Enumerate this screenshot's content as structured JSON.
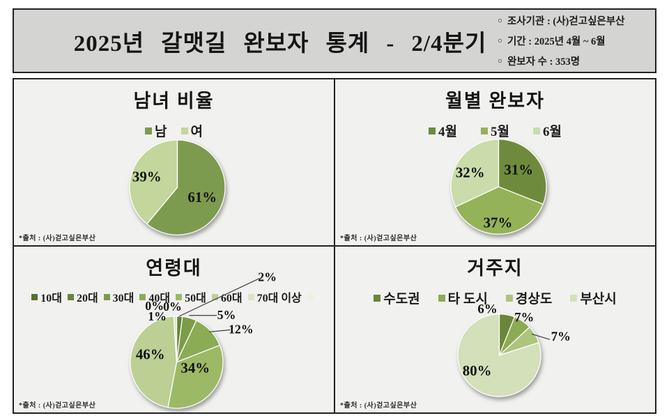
{
  "header": {
    "title": "2025년 갈맷길 완보자 통계 - 2/4분기",
    "info_items": [
      {
        "bullet": "○",
        "text": "조사기관 : (사)걷고싶은부산"
      },
      {
        "bullet": "○",
        "text": "기간 : 2025년 4월 ~ 6월"
      },
      {
        "bullet": "○",
        "text": "완보자 수 : 353명"
      }
    ]
  },
  "chart_data": [
    {
      "type": "pie",
      "title": "남녀 비율",
      "categories": [
        "남",
        "여"
      ],
      "values": [
        61,
        39
      ],
      "labels": [
        "61%",
        "39%"
      ],
      "colors": [
        "#7d9b4f",
        "#c3d69b"
      ],
      "legend_position": "top",
      "start_angle": "12-oclock-clockwise",
      "source_note": "*출처 : (사)걷고싶은부산"
    },
    {
      "type": "pie",
      "title": "월별 완보자",
      "categories": [
        "4월",
        "5월",
        "6월"
      ],
      "values": [
        31,
        37,
        32
      ],
      "labels": [
        "31%",
        "37%",
        "32%"
      ],
      "colors": [
        "#6e8b3d",
        "#94b257",
        "#cbdcab"
      ],
      "legend_position": "top",
      "start_angle": "12-oclock-clockwise",
      "source_note": "*출처 : (사)걷고싶은부산"
    },
    {
      "type": "pie",
      "title": "연령대",
      "categories": [
        "10대",
        "20대",
        "30대",
        "40대",
        "50대",
        "60대",
        "70대 이상",
        ""
      ],
      "values": [
        0,
        2,
        5,
        12,
        34,
        46,
        1,
        0
      ],
      "labels": [
        "0%",
        "2%",
        "5%",
        "12%",
        "34%",
        "46%",
        "1%",
        "0%"
      ],
      "colors": [
        "#55702f",
        "#66833a",
        "#7b9c49",
        "#8bab55",
        "#9cb966",
        "#bcd094",
        "#d9e5c3",
        "#ecf1e0"
      ],
      "legend_position": "top",
      "start_angle": "12-oclock-clockwise",
      "source_note": "*출처 : (사)걷고싶은부산"
    },
    {
      "type": "pie",
      "title": "거주지",
      "categories": [
        "수도권",
        "타 도시",
        "경상도",
        "부산시"
      ],
      "values": [
        6,
        7,
        7,
        80
      ],
      "labels": [
        "6%",
        "7%",
        "7%",
        "80%"
      ],
      "colors": [
        "#6b8639",
        "#8cab55",
        "#adc47f",
        "#d3e0ba"
      ],
      "legend_position": "top",
      "start_angle": "12-oclock-clockwise",
      "source_note": "*출처 : (사)걷고싶은부산"
    }
  ]
}
